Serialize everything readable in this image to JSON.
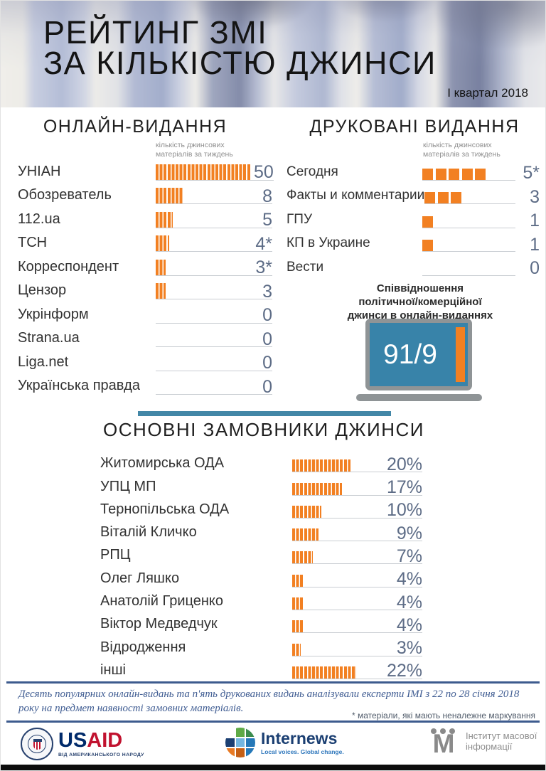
{
  "header": {
    "title_line1": "РЕЙТИНГ ЗМІ",
    "title_line2": "ЗА КІЛЬКІСТЮ ДЖИНСИ",
    "period": "І квартал 2018"
  },
  "colors": {
    "orange": "#F28022",
    "teal_divider": "#4387A7",
    "value_text": "#5D6C86",
    "laptop_screen_blue": "#3883A9",
    "footer_rule_blue": "#3D5B8E"
  },
  "sections": {
    "online": {
      "heading": "ОНЛАЙН-ВИДАННЯ",
      "note_line1": "кількість джинсових",
      "note_line2": "матеріалів за тиждень",
      "rows": [
        {
          "label": "УНІАН",
          "value": 50,
          "display": "50"
        },
        {
          "label": "Обозреватель",
          "value": 8,
          "display": "8"
        },
        {
          "label": "112.ua",
          "value": 5,
          "display": "5"
        },
        {
          "label": "ТСН",
          "value": 4,
          "display": "4*"
        },
        {
          "label": "Корреспондент",
          "value": 3,
          "display": "3*"
        },
        {
          "label": "Цензор",
          "value": 3,
          "display": "3"
        },
        {
          "label": "Укрінформ",
          "value": 0,
          "display": "0"
        },
        {
          "label": "Strana.ua",
          "value": 0,
          "display": "0"
        },
        {
          "label": "Liga.net",
          "value": 0,
          "display": "0"
        },
        {
          "label": "Українська правда",
          "value": 0,
          "display": "0"
        }
      ]
    },
    "print": {
      "heading": "ДРУКОВАНІ ВИДАННЯ",
      "note_line1": "кількість джинсових",
      "note_line2": "матеріалів за тиждень",
      "rows": [
        {
          "label": "Сегодня",
          "value": 5,
          "display": "5*"
        },
        {
          "label": "Факты и комментарии",
          "value": 3,
          "display": "3"
        },
        {
          "label": "ГПУ",
          "value": 1,
          "display": "1"
        },
        {
          "label": "КП в Украине",
          "value": 1,
          "display": "1"
        },
        {
          "label": "Вести",
          "value": 0,
          "display": "0"
        }
      ]
    },
    "customers": {
      "heading": "ОСНОВНІ ЗАМОВНИКИ ДЖИНСИ",
      "rows": [
        {
          "label": "Житомирська ОДА",
          "value": 20,
          "display": "20%"
        },
        {
          "label": "УПЦ МП",
          "value": 17,
          "display": "17%"
        },
        {
          "label": "Тернопільська ОДА",
          "value": 10,
          "display": "10%"
        },
        {
          "label": "Віталій Кличко",
          "value": 9,
          "display": "9%"
        },
        {
          "label": "РПЦ",
          "value": 7,
          "display": "7%"
        },
        {
          "label": "Олег Ляшко",
          "value": 4,
          "display": "4%"
        },
        {
          "label": "Анатолій Гриценко",
          "value": 4,
          "display": "4%"
        },
        {
          "label": "Віктор Медведчук",
          "value": 4,
          "display": "4%"
        },
        {
          "label": "Відродження",
          "value": 3,
          "display": "3%"
        },
        {
          "label": "інші",
          "value": 22,
          "display": "22%"
        }
      ]
    }
  },
  "ratio": {
    "caption_line1": "Співвідношення",
    "caption_line2": "політичної/комерційної",
    "caption_line3": "джинси в онлайн-виданнях",
    "value": "91/9"
  },
  "footer": {
    "note": "Десять популярних онлайн-видань та п'ять друкованих видань аналізували експерти ІМІ з 22 по 28 січня 2018 року на предмет наявності замовних матеріалів.",
    "asterisk_note": "* матеріали, які мають неналежне маркування"
  },
  "logos": {
    "usaid": {
      "word_us": "US",
      "word_aid": "AID",
      "tagline": "ВІД АМЕРИКАНСЬКОГО НАРОДУ"
    },
    "internews": {
      "name": "Internews",
      "tagline": "Local voices. Global change."
    },
    "imi": {
      "name_line1": "Інститут масової",
      "name_line2": "інформації"
    }
  },
  "chart_data": [
    {
      "type": "bar",
      "orientation": "horizontal",
      "title": "ОНЛАЙН-ВИДАННЯ",
      "xlabel": "кількість джинсових матеріалів за тиждень",
      "categories": [
        "УНІАН",
        "Обозреватель",
        "112.ua",
        "ТСН",
        "Корреспондент",
        "Цензор",
        "Укрінформ",
        "Strana.ua",
        "Liga.net",
        "Українська правда"
      ],
      "values": [
        50,
        8,
        5,
        4,
        3,
        3,
        0,
        0,
        0,
        0
      ],
      "value_labels": [
        "50",
        "8",
        "5",
        "4*",
        "3*",
        "3",
        "0",
        "0",
        "0",
        "0"
      ]
    },
    {
      "type": "bar",
      "orientation": "horizontal",
      "title": "ДРУКОВАНІ ВИДАННЯ",
      "xlabel": "кількість джинсових матеріалів за тиждень",
      "categories": [
        "Сегодня",
        "Факты и комментарии",
        "ГПУ",
        "КП в Украине",
        "Вести"
      ],
      "values": [
        5,
        3,
        1,
        1,
        0
      ],
      "value_labels": [
        "5*",
        "3",
        "1",
        "1",
        "0"
      ]
    },
    {
      "type": "bar",
      "orientation": "horizontal",
      "title": "ОСНОВНІ ЗАМОВНИКИ ДЖИНСИ",
      "unit": "%",
      "categories": [
        "Житомирська ОДА",
        "УПЦ МП",
        "Тернопільська ОДА",
        "Віталій Кличко",
        "РПЦ",
        "Олег Ляшко",
        "Анатолій Гриценко",
        "Віктор Медведчук",
        "Відродження",
        "інші"
      ],
      "values": [
        20,
        17,
        10,
        9,
        7,
        4,
        4,
        4,
        3,
        22
      ],
      "value_labels": [
        "20%",
        "17%",
        "10%",
        "9%",
        "7%",
        "4%",
        "4%",
        "4%",
        "3%",
        "22%"
      ]
    },
    {
      "type": "other",
      "title": "Співвідношення політичної/комерційної джинси в онлайн-виданнях",
      "value": "91/9"
    }
  ]
}
